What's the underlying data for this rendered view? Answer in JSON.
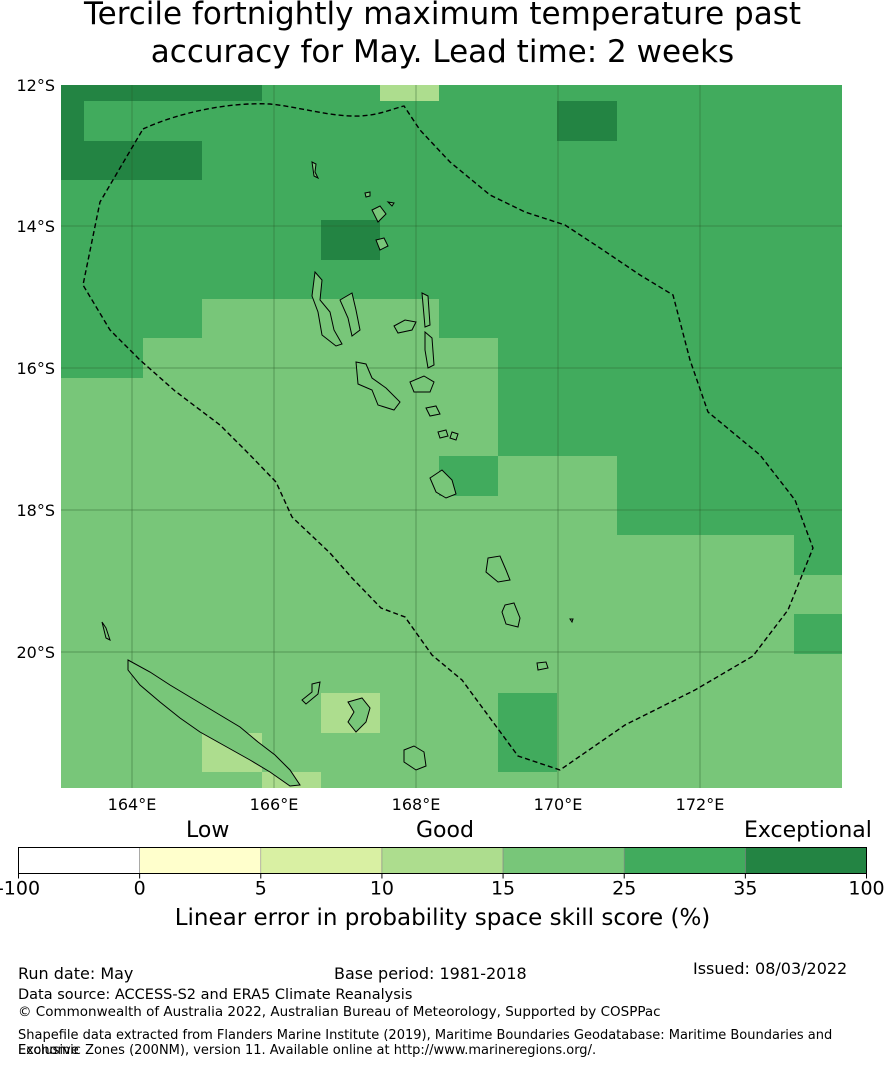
{
  "title": {
    "line1": "Tercile fortnightly maximum temperature past",
    "line2": "accuracy for May. Lead time: 2 weeks"
  },
  "map": {
    "lat_ticks": [
      "12°S",
      "14°S",
      "16°S",
      "18°S",
      "20°S"
    ],
    "lon_ticks": [
      "164°E",
      "166°E",
      "168°E",
      "170°E",
      "172°E"
    ]
  },
  "colorbar": {
    "categories": {
      "low": "Low",
      "good": "Good",
      "exceptional": "Exceptional"
    },
    "ticks": [
      "-100",
      "0",
      "5",
      "10",
      "15",
      "25",
      "35",
      "100"
    ],
    "colors": [
      "#ffffff",
      "#ffffcc",
      "#d9f0a3",
      "#addd8e",
      "#78c679",
      "#41ab5d",
      "#238443"
    ],
    "label": "Linear error in probability space skill score (%)"
  },
  "footer": {
    "run_date": "Run date: May",
    "base_period": "Base period: 1981-2018",
    "issued": "Issued: 08/03/2022",
    "data_source": "Data source: ACCESS-S2 and ERA5 Climate Reanalysis",
    "copyright": "© Commonwealth of Australia 2022, Australian Bureau of Meteorology, Supported by COSPPac",
    "shapefile_line1": "Shapefile data extracted from Flanders Marine Institute (2019), Maritime Boundaries Geodatabase: Maritime Boundaries and Exclusive",
    "shapefile_line2": "Economic Zones (200NM), version 11. Available online at http://www.marineregions.org/."
  }
}
